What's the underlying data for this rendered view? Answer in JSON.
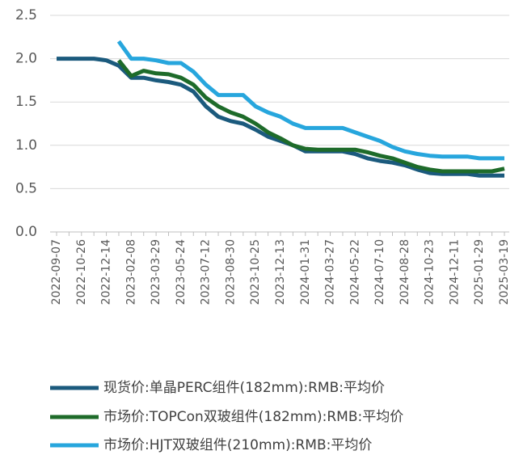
{
  "chart_data": {
    "type": "line",
    "categories": [
      "2022-09-07",
      null,
      "2022-10-26",
      null,
      "2022-12-14",
      null,
      "2023-02-08",
      null,
      "2023-03-29",
      null,
      "2023-05-24",
      null,
      "2023-07-12",
      null,
      "2023-08-30",
      null,
      "2023-10-25",
      null,
      "2023-12-13",
      null,
      "2024-01-31",
      null,
      "2024-03-27",
      null,
      "2024-05-22",
      null,
      "2024-07-10",
      null,
      "2024-08-28",
      null,
      "2024-10-23",
      null,
      "2024-12-11",
      null,
      "2025-01-29",
      null,
      "2025-03-19"
    ],
    "series": [
      {
        "name": "现货价:单晶PERC组件(182mm):RMB:平均价",
        "color": "#1b5a7d",
        "values": [
          2.0,
          2.0,
          2.0,
          2.0,
          1.98,
          1.92,
          1.78,
          1.78,
          1.75,
          1.73,
          1.7,
          1.62,
          1.45,
          1.33,
          1.28,
          1.25,
          1.18,
          1.1,
          1.05,
          1.0,
          0.93,
          0.93,
          0.93,
          0.93,
          0.9,
          0.85,
          0.82,
          0.8,
          0.77,
          0.72,
          0.68,
          0.67,
          0.67,
          0.67,
          0.65,
          0.65,
          0.65
        ]
      },
      {
        "name": "市场价:TOPCon双玻组件(182mm):RMB:平均价",
        "color": "#1e6b2a",
        "values": [
          null,
          null,
          null,
          null,
          null,
          1.98,
          1.8,
          1.86,
          1.83,
          1.82,
          1.78,
          1.7,
          1.55,
          1.45,
          1.38,
          1.33,
          1.25,
          1.15,
          1.08,
          1.0,
          0.96,
          0.95,
          0.95,
          0.95,
          0.95,
          0.92,
          0.88,
          0.85,
          0.8,
          0.75,
          0.72,
          0.7,
          0.7,
          0.7,
          0.7,
          0.7,
          0.73
        ]
      },
      {
        "name": "市场价:HJT双玻组件(210mm):RMB:平均价",
        "color": "#27a6dd",
        "values": [
          null,
          null,
          null,
          null,
          null,
          2.2,
          2.0,
          2.0,
          1.98,
          1.95,
          1.95,
          1.85,
          1.7,
          1.58,
          1.58,
          1.58,
          1.45,
          1.38,
          1.33,
          1.25,
          1.2,
          1.2,
          1.2,
          1.2,
          1.15,
          1.1,
          1.05,
          0.98,
          0.93,
          0.9,
          0.88,
          0.87,
          0.87,
          0.87,
          0.85,
          0.85,
          0.85
        ]
      }
    ],
    "ylim": [
      0,
      2.5
    ],
    "yticks": [
      {
        "value": 0,
        "label": "0.0"
      },
      0.5,
      {
        "value": 1,
        "label": "1.0"
      },
      1.5,
      {
        "value": 2,
        "label": "2.0"
      },
      2.5
    ],
    "grid": true,
    "legend": "bottom"
  }
}
